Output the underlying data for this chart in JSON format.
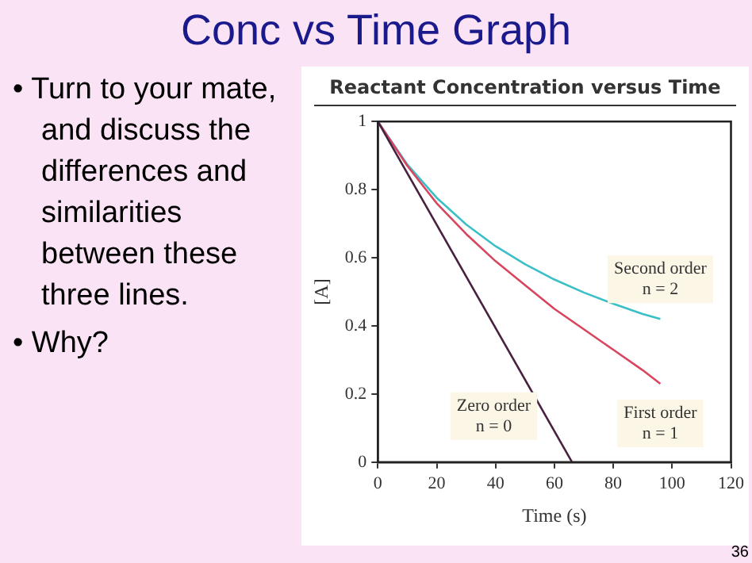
{
  "chart_data": {
    "type": "line",
    "title": "Conc vs Time Graph",
    "subtitle": "Reactant Concentration versus Time",
    "xlabel": "Time (s)",
    "ylabel": "[A]",
    "xlim": [
      0,
      120
    ],
    "xticks": [
      0,
      20,
      40,
      60,
      80,
      100,
      120
    ],
    "ylim": [
      0,
      1
    ],
    "yticks": [
      0,
      0.2,
      0.4,
      0.6,
      0.8,
      1
    ],
    "grid": false,
    "legend": false,
    "marker": "none",
    "line_style": "solid",
    "series": [
      {
        "name": "Zero order\nn = 0",
        "color": "#4a2040",
        "x": [
          0,
          66
        ],
        "values": [
          1,
          0
        ]
      },
      {
        "name": "First order\nn = 1",
        "color": "#d9455f",
        "x": [
          0,
          10,
          20,
          30,
          40,
          50,
          60,
          70,
          80,
          90,
          96
        ],
        "values": [
          1,
          0.87,
          0.76,
          0.67,
          0.59,
          0.52,
          0.45,
          0.39,
          0.33,
          0.27,
          0.23
        ]
      },
      {
        "name": "Second order\nn = 2",
        "color": "#3bbfc6",
        "x": [
          0,
          10,
          20,
          30,
          40,
          50,
          60,
          70,
          80,
          90,
          96
        ],
        "values": [
          1,
          0.874,
          0.776,
          0.698,
          0.634,
          0.581,
          0.536,
          0.498,
          0.465,
          0.435,
          0.42
        ]
      }
    ],
    "annotations": [
      "• Turn to your mate, and discuss the differences and similarities between these three lines.",
      "• Why?",
      "36"
    ]
  }
}
